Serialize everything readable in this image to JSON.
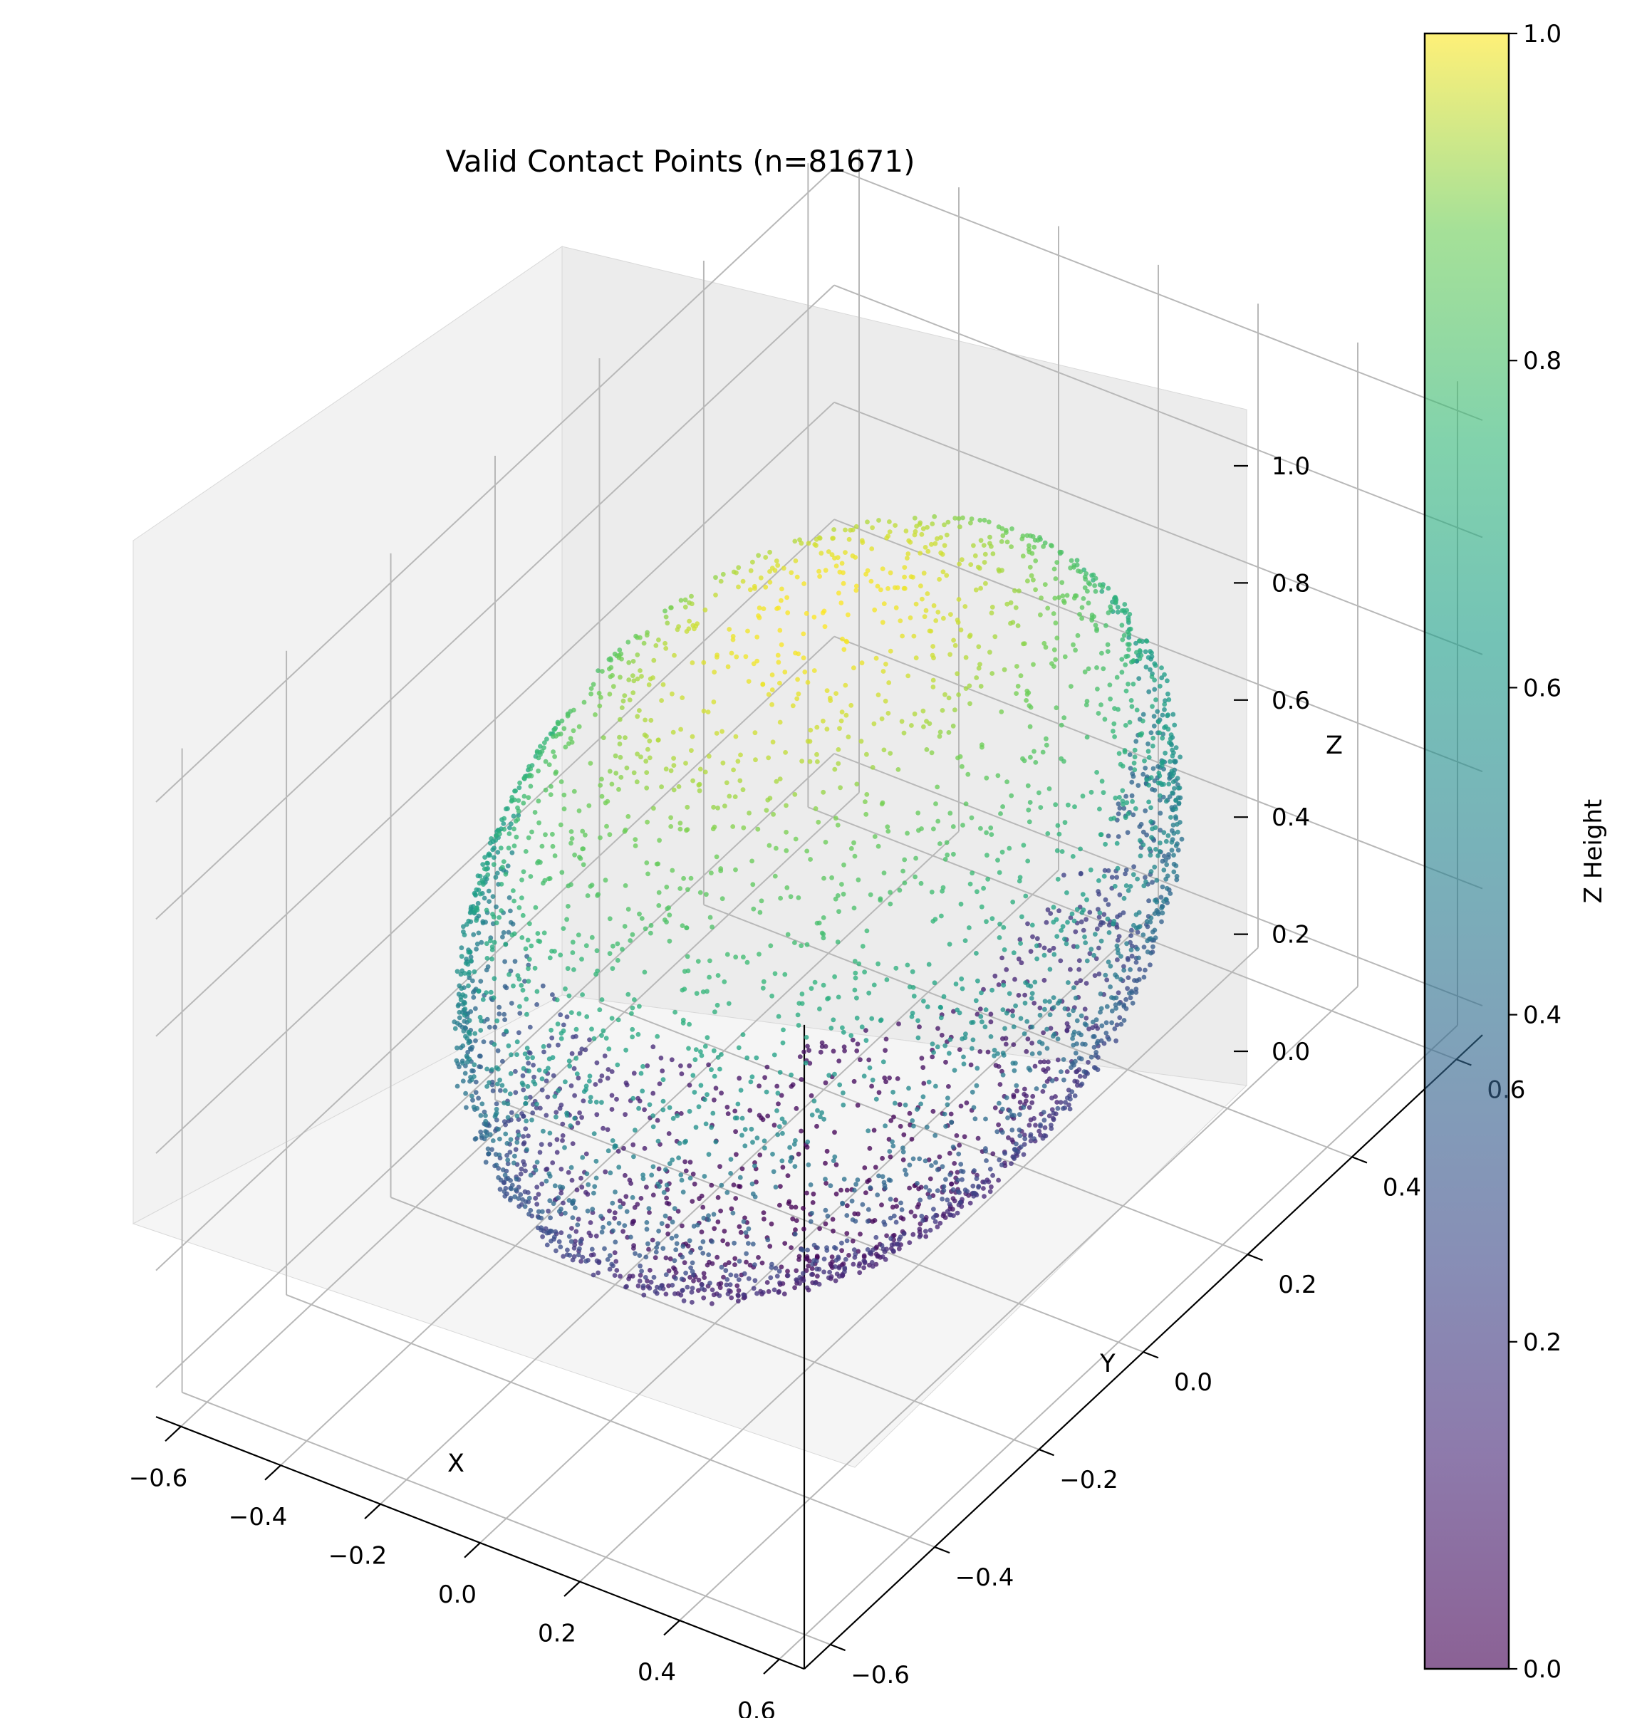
{
  "chart_data": {
    "type": "scatter",
    "title": "Valid Contact Points (n=81671)",
    "point_count": 81671,
    "xlabel": "X",
    "ylabel": "Y",
    "zlabel": "Z",
    "x_ticks": [
      "−0.6",
      "−0.4",
      "−0.2",
      "0.0",
      "0.2",
      "0.4",
      "0.6"
    ],
    "y_ticks": [
      "−0.6",
      "−0.4",
      "−0.2",
      "0.0",
      "0.2",
      "0.4",
      "0.6"
    ],
    "z_ticks": [
      "0.0",
      "0.2",
      "0.4",
      "0.6",
      "0.8",
      "1.0"
    ],
    "xlim": [
      -0.65,
      0.65
    ],
    "ylim": [
      -0.65,
      0.65
    ],
    "zlim": [
      -0.05,
      1.05
    ],
    "shape": "points on the upper part of a sphere (z from about -0.05 to 1.0), colored by z",
    "colormap": "viridis",
    "alpha": 0.7,
    "colorbar": {
      "label": "Z Height",
      "ticks": [
        "0.0",
        "0.2",
        "0.4",
        "0.6",
        "0.8",
        "1.0"
      ],
      "range": [
        0.0,
        1.0
      ]
    },
    "colors": {
      "low": "#440154",
      "mid_low": "#3b528b",
      "mid": "#21918c",
      "mid_high": "#5ec962",
      "high": "#fde725",
      "pane": "#f2f2f2",
      "grid": "#b0b0b0"
    }
  }
}
